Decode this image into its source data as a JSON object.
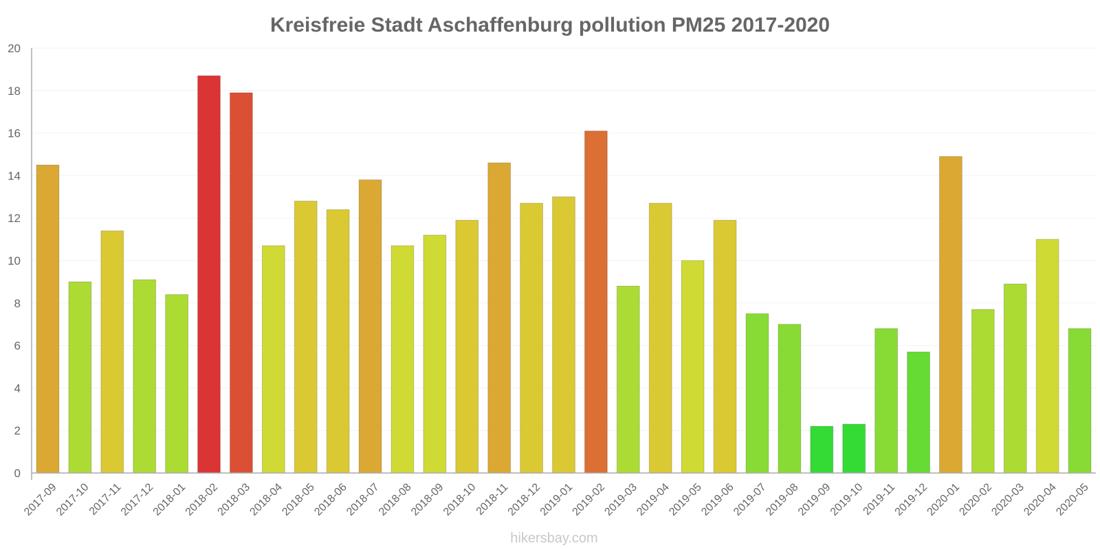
{
  "chart_data": {
    "type": "bar",
    "title": "Kreisfreie Stadt Aschaffenburg pollution PM25 2017-2020",
    "xlabel": "",
    "ylabel": "",
    "ylim": [
      0,
      20
    ],
    "yticks": [
      0,
      2,
      4,
      6,
      8,
      10,
      12,
      14,
      16,
      18,
      20
    ],
    "grid": true,
    "categories": [
      "2017-09",
      "2017-10",
      "2017-11",
      "2017-12",
      "2018-01",
      "2018-02",
      "2018-03",
      "2018-04",
      "2018-05",
      "2018-06",
      "2018-07",
      "2018-08",
      "2018-09",
      "2018-10",
      "2018-11",
      "2018-12",
      "2019-01",
      "2019-02",
      "2019-03",
      "2019-04",
      "2019-05",
      "2019-06",
      "2019-07",
      "2019-08",
      "2019-09",
      "2019-10",
      "2019-11",
      "2019-12",
      "2020-01",
      "2020-02",
      "2020-03",
      "2020-04",
      "2020-05"
    ],
    "values": [
      14.5,
      9.0,
      11.4,
      9.1,
      8.4,
      18.7,
      17.9,
      10.7,
      12.8,
      12.4,
      13.8,
      10.7,
      11.2,
      11.9,
      14.6,
      12.7,
      13.0,
      16.1,
      8.8,
      12.7,
      10.0,
      11.9,
      7.5,
      7.0,
      2.2,
      2.3,
      6.8,
      5.7,
      14.9,
      7.7,
      8.9,
      11.0,
      6.8
    ],
    "colors": [
      "#dba834",
      "#acdb34",
      "#dbc934",
      "#acdb34",
      "#acdb34",
      "#db3434",
      "#db5034",
      "#cfdb34",
      "#dbc934",
      "#dbc934",
      "#dba834",
      "#cfdb34",
      "#cfdb34",
      "#dbc934",
      "#dba834",
      "#dbc934",
      "#dbc934",
      "#db6f34",
      "#acdb34",
      "#dbc934",
      "#cfdb34",
      "#dbc934",
      "#88db34",
      "#88db34",
      "#34db34",
      "#34db34",
      "#88db34",
      "#65db34",
      "#dba834",
      "#acdb34",
      "#acdb34",
      "#cfdb34",
      "#88db34"
    ]
  },
  "watermark": "hikersbay.com"
}
